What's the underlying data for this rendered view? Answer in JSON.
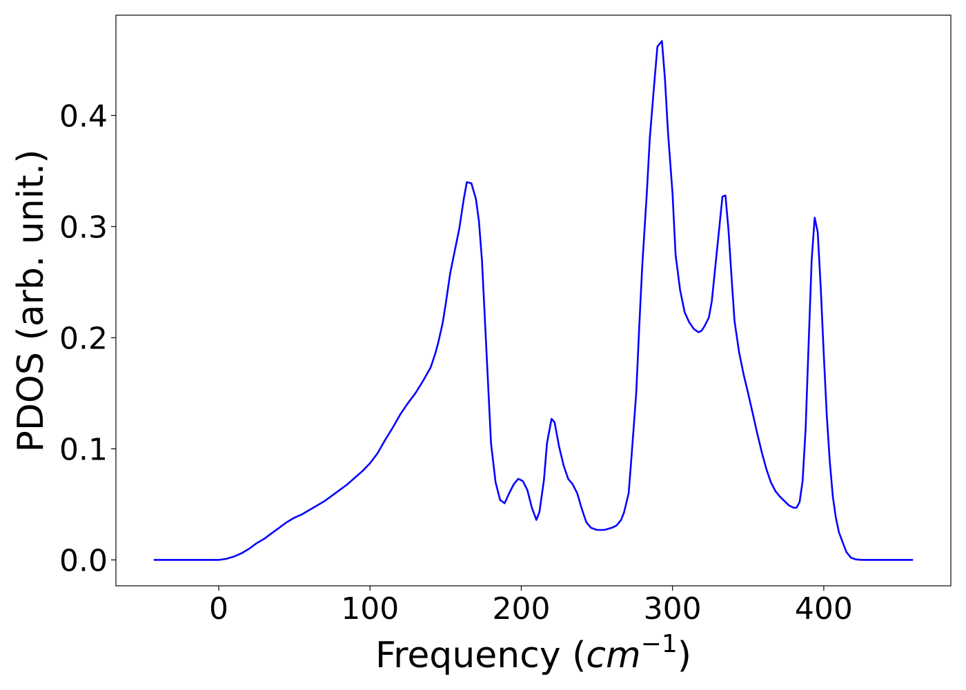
{
  "chart_data": {
    "type": "line",
    "x_label_parts": [
      "Frequency (",
      "cm",
      "−1",
      ")"
    ],
    "y_label": "PDOS (arb. unit.)",
    "x": [
      -43,
      0,
      5,
      10,
      15,
      20,
      25,
      30,
      35,
      40,
      45,
      50,
      55,
      60,
      65,
      70,
      75,
      80,
      85,
      90,
      95,
      100,
      105,
      110,
      115,
      120,
      125,
      130,
      135,
      140,
      143,
      145,
      148,
      150,
      153,
      156,
      159,
      162,
      164,
      167,
      170,
      172,
      174,
      176,
      178,
      180,
      183,
      186,
      189,
      192,
      195,
      198,
      201,
      204,
      207,
      210,
      212,
      215,
      217,
      220,
      222,
      225,
      228,
      231,
      234,
      237,
      240,
      243,
      246,
      250,
      255,
      260,
      263,
      266,
      268,
      271,
      273,
      276,
      278,
      280,
      283,
      285,
      288,
      290,
      293,
      295,
      297,
      300,
      302,
      305,
      308,
      311,
      314,
      317,
      319,
      321,
      324,
      326,
      328,
      331,
      333,
      335,
      337,
      339,
      341,
      344,
      347,
      350,
      353,
      356,
      359,
      362,
      365,
      368,
      371,
      374,
      377,
      380,
      382,
      384,
      386,
      388,
      390,
      392,
      394,
      396,
      398,
      400,
      402,
      404,
      406,
      408,
      410,
      413,
      415,
      418,
      421,
      425,
      459
    ],
    "series": [
      {
        "color": "#0000ff",
        "values": [
          0,
          0,
          0.001,
          0.003,
          0.006,
          0.01,
          0.015,
          0.019,
          0.024,
          0.029,
          0.034,
          0.038,
          0.041,
          0.045,
          0.049,
          0.053,
          0.058,
          0.063,
          0.068,
          0.074,
          0.08,
          0.087,
          0.096,
          0.108,
          0.119,
          0.131,
          0.141,
          0.15,
          0.161,
          0.173,
          0.185,
          0.195,
          0.213,
          0.23,
          0.258,
          0.278,
          0.298,
          0.325,
          0.34,
          0.339,
          0.325,
          0.305,
          0.27,
          0.215,
          0.16,
          0.105,
          0.07,
          0.054,
          0.051,
          0.06,
          0.068,
          0.073,
          0.071,
          0.063,
          0.047,
          0.036,
          0.043,
          0.072,
          0.105,
          0.127,
          0.124,
          0.102,
          0.085,
          0.073,
          0.068,
          0.06,
          0.046,
          0.034,
          0.029,
          0.027,
          0.027,
          0.029,
          0.031,
          0.036,
          0.043,
          0.06,
          0.095,
          0.15,
          0.21,
          0.265,
          0.33,
          0.38,
          0.43,
          0.462,
          0.467,
          0.433,
          0.385,
          0.33,
          0.275,
          0.243,
          0.223,
          0.214,
          0.208,
          0.205,
          0.206,
          0.21,
          0.218,
          0.233,
          0.26,
          0.3,
          0.327,
          0.328,
          0.297,
          0.255,
          0.215,
          0.187,
          0.167,
          0.15,
          0.132,
          0.114,
          0.097,
          0.082,
          0.07,
          0.062,
          0.057,
          0.053,
          0.049,
          0.047,
          0.047,
          0.052,
          0.071,
          0.118,
          0.195,
          0.27,
          0.308,
          0.295,
          0.245,
          0.185,
          0.13,
          0.088,
          0.057,
          0.038,
          0.025,
          0.014,
          0.007,
          0.002,
          0.0005,
          0,
          0
        ]
      }
    ],
    "xlim": [
      -68,
      484
    ],
    "ylim": [
      -0.0233,
      0.4903
    ],
    "xticks": [
      0,
      100,
      200,
      300,
      400
    ],
    "yticks": [
      {
        "value": 0,
        "label": "0.0"
      },
      0.1,
      0.2,
      0.3,
      0.4
    ],
    "grid": false
  }
}
